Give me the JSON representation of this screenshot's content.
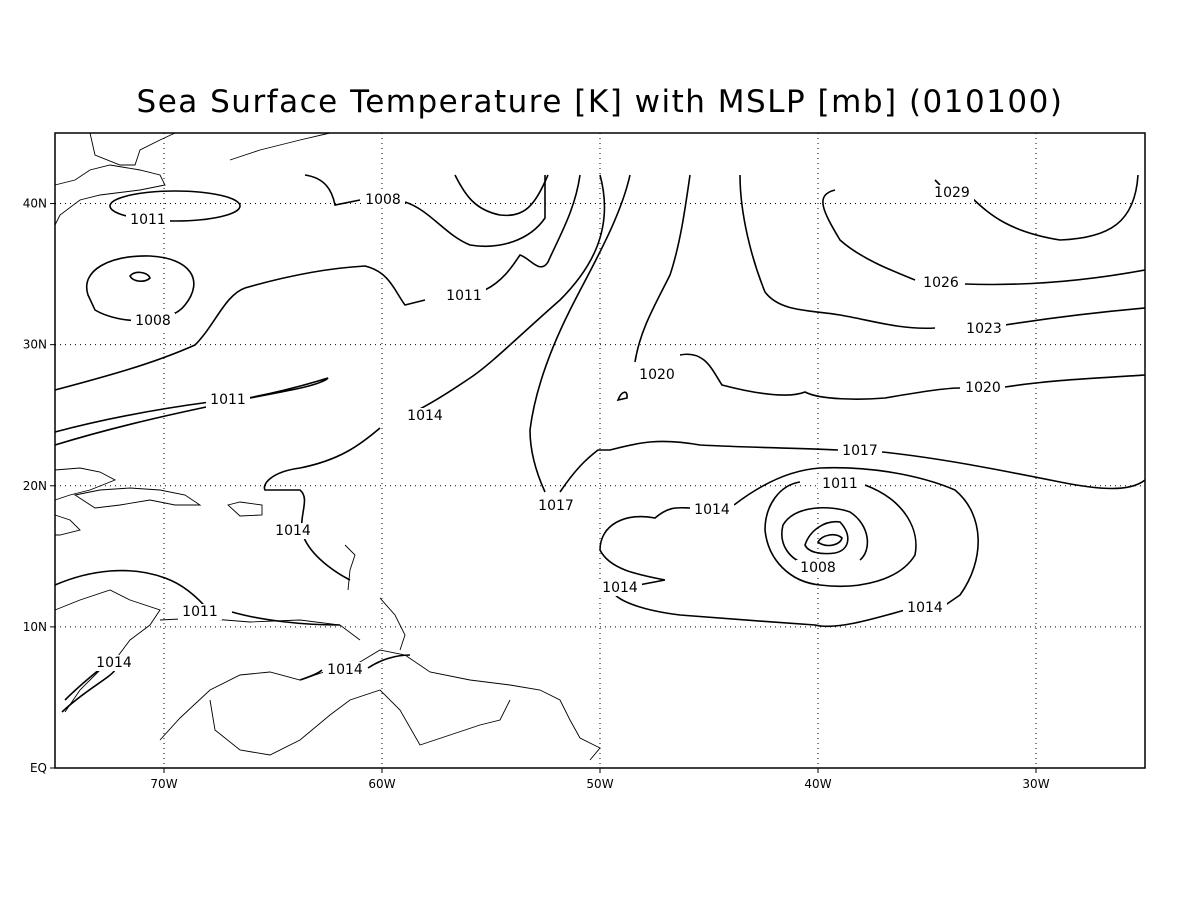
{
  "map": {
    "title": "Sea Surface Temperature [K] with MSLP [mb] (010100)",
    "lon_range": [
      -75,
      -25
    ],
    "lat_range": [
      0,
      45
    ],
    "lon_ticks": [
      {
        "value": -70,
        "label": "70W"
      },
      {
        "value": -60,
        "label": "60W"
      },
      {
        "value": -50,
        "label": "50W"
      },
      {
        "value": -40,
        "label": "40W"
      },
      {
        "value": -30,
        "label": "30W"
      }
    ],
    "lat_ticks": [
      {
        "value": 0,
        "label": "EQ"
      },
      {
        "value": 10,
        "label": "10N"
      },
      {
        "value": 20,
        "label": "20N"
      },
      {
        "value": 30,
        "label": "30N"
      },
      {
        "value": 40,
        "label": "40N"
      }
    ],
    "contour_labels": [
      "1011",
      "1008",
      "1008",
      "1011",
      "1011",
      "1014",
      "1017",
      "1020",
      "1029",
      "1026",
      "1023",
      "1020",
      "1017",
      "1011",
      "1014",
      "1008",
      "1014",
      "1014",
      "1014",
      "1011",
      "1014",
      "1014"
    ]
  }
}
